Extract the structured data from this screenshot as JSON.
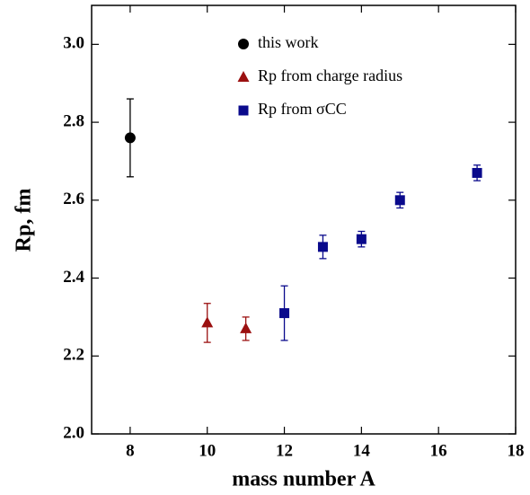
{
  "chart_data": {
    "type": "scatter",
    "xlabel": "mass number A",
    "ylabel": "Rp, fm",
    "xlim": [
      7,
      18
    ],
    "ylim": [
      2.0,
      3.1
    ],
    "xticks": [
      8,
      10,
      12,
      14,
      16,
      18
    ],
    "yticks": [
      {
        "value": 2,
        "label": "2.0"
      },
      2.2,
      2.4,
      2.6,
      2.8,
      {
        "value": 3,
        "label": "3.0"
      }
    ],
    "series": [
      {
        "name": "this work",
        "color": "#000000",
        "marker": "circle",
        "x": [
          8
        ],
        "values": [
          2.76
        ],
        "errors": [
          0.1
        ]
      },
      {
        "name": "Rp from charge radius",
        "color": "#9b1010",
        "marker": "triangle",
        "x": [
          10,
          11
        ],
        "values": [
          2.285,
          2.27
        ],
        "errors": [
          0.05,
          0.03
        ]
      },
      {
        "name": "Rp from σCC",
        "color": "#0a0a8c",
        "marker": "square",
        "x": [
          12,
          13,
          14,
          15,
          17
        ],
        "values": [
          2.31,
          2.48,
          2.5,
          2.6,
          2.67
        ],
        "errors": [
          0.07,
          0.03,
          0.02,
          0.02,
          0.02
        ]
      }
    ]
  }
}
